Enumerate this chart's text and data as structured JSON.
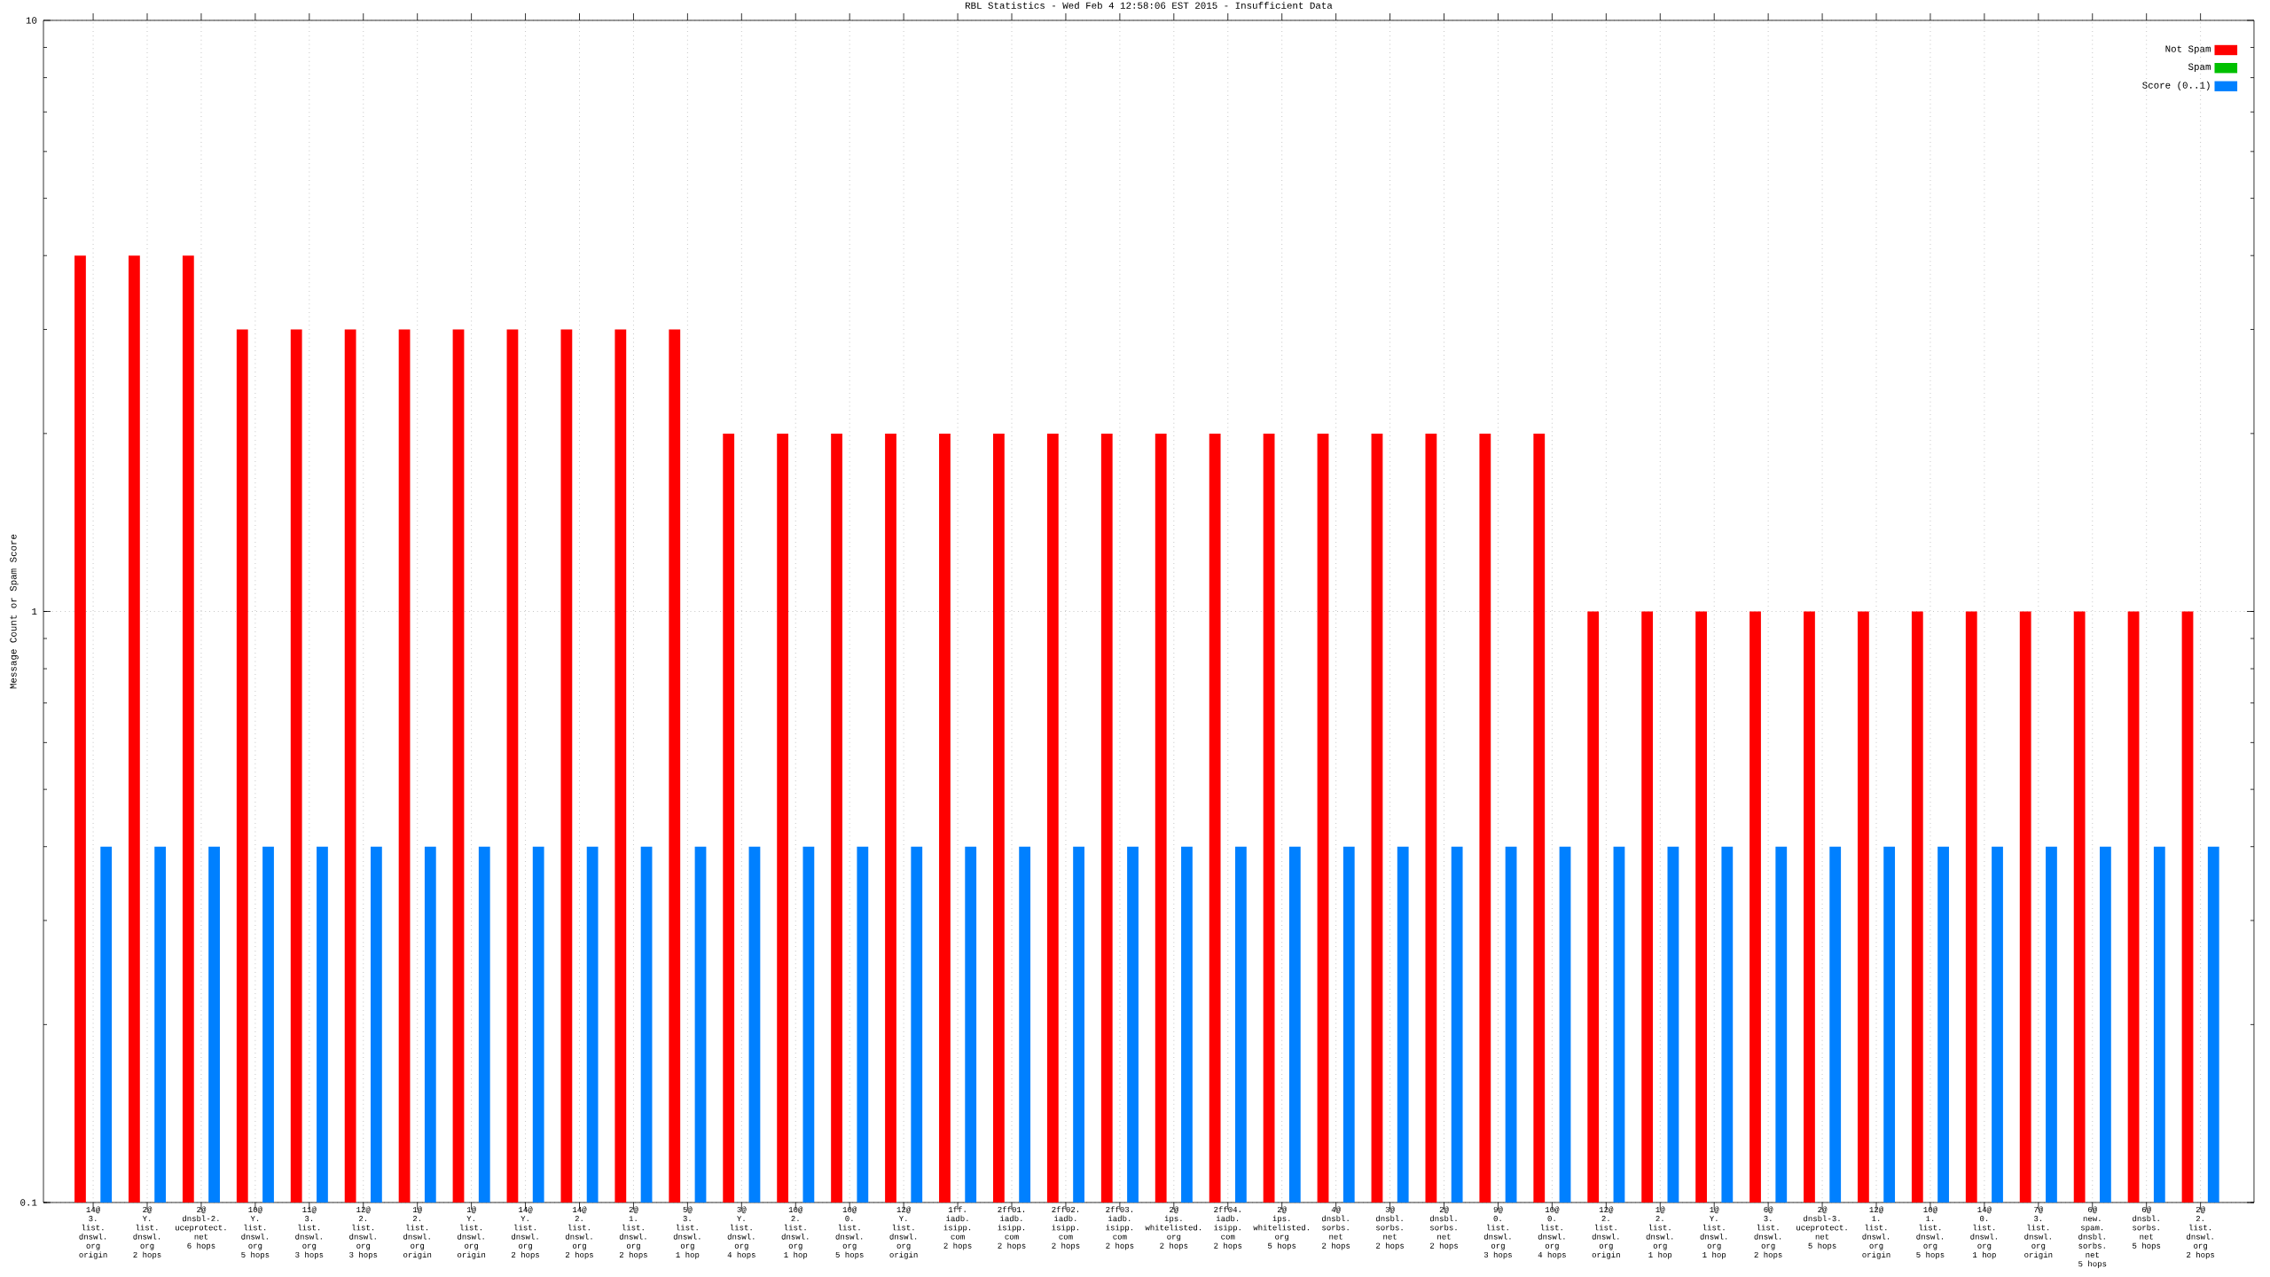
{
  "chart_data": {
    "type": "bar",
    "title": "RBL Statistics - Wed Feb  4 12:58:06 EST 2015 - Insufficient Data",
    "ylabel": "Message Count or Spam Score",
    "categories": [
      "14@\n3.\nlist.\ndnswl.\norg\norigin",
      "2@\nY.\nlist.\ndnswl.\norg\n2 hops",
      "2@\ndnsbl-2.\nuceprotect.\nnet\n6 hops",
      "10@\nY.\nlist.\ndnswl.\norg\n5 hops",
      "11@\n3.\nlist.\ndnswl.\norg\n3 hops",
      "12@\n2.\nlist.\ndnswl.\norg\n3 hops",
      "1@\n2.\nlist.\ndnswl.\norg\norigin",
      "1@\nY.\nlist.\ndnswl.\norg\norigin",
      "14@\nY.\nlist.\ndnswl.\norg\n2 hops",
      "14@\n2.\nlist.\ndnswl.\norg\n2 hops",
      "2@\n1.\nlist.\ndnswl.\norg\n2 hops",
      "5@\n3.\nlist.\ndnswl.\norg\n1 hop",
      "3@\nY.\nlist.\ndnswl.\norg\n4 hops",
      "10@\n2.\nlist.\ndnswl.\norg\n1 hop",
      "10@\n0.\nlist.\ndnswl.\norg\n5 hops",
      "12@\nY.\nlist.\ndnswl.\norg\norigin",
      "1ff.\niadb.\nisipp.\ncom\n2 hops",
      "2ff01.\niadb.\nisipp.\ncom\n2 hops",
      "2ff02.\niadb.\nisipp.\ncom\n2 hops",
      "2ff03.\niadb.\nisipp.\ncom\n2 hops",
      "2@\nips.\nwhitelisted.\norg\n2 hops",
      "2ff04.\niadb.\nisipp.\ncom\n2 hops",
      "2@\nips.\nwhitelisted.\norg\n5 hops",
      "4@\ndnsbl.\nsorbs.\nnet\n2 hops",
      "3@\ndnsbl.\nsorbs.\nnet\n2 hops",
      "2@\ndnsbl.\nsorbs.\nnet\n2 hops",
      "9@\n0.\nlist.\ndnswl.\norg\n3 hops",
      "10@\n0.\nlist.\ndnswl.\norg\n4 hops",
      "12@\n2.\nlist.\ndnswl.\norg\norigin",
      "1@\n2.\nlist.\ndnswl.\norg\n1 hop",
      "1@\nY.\nlist.\ndnswl.\norg\n1 hop",
      "6@\n3.\nlist.\ndnswl.\norg\n2 hops",
      "2@\ndnsbl-3.\nuceprotect.\nnet\n5 hops",
      "12@\n1.\nlist.\ndnswl.\norg\norigin",
      "10@\n1.\nlist.\ndnswl.\norg\n5 hops",
      "14@\n0.\nlist.\ndnswl.\norg\n1 hop",
      "7@\n3.\nlist.\ndnswl.\norg\norigin",
      "6@\nnew.\nspam.\ndnsbl.\nsorbs.\nnet\n5 hops",
      "6@\ndnsbl.\nsorbs.\nnet\n5 hops",
      "2@\n2.\nlist.\ndnswl.\norg\n2 hops"
    ],
    "series": [
      {
        "name": "Not Spam",
        "color": "#ff0000",
        "values": [
          4,
          4,
          4,
          3,
          3,
          3,
          3,
          3,
          3,
          3,
          3,
          3,
          2,
          2,
          2,
          2,
          2,
          2,
          2,
          2,
          2,
          2,
          2,
          2,
          2,
          2,
          2,
          2,
          1,
          1,
          1,
          1,
          1,
          1,
          1,
          1,
          1,
          1,
          1,
          1
        ]
      },
      {
        "name": "Spam",
        "color": "#00c000",
        "values": [
          null,
          null,
          null,
          null,
          null,
          null,
          null,
          null,
          null,
          null,
          null,
          null,
          null,
          null,
          null,
          null,
          null,
          null,
          null,
          null,
          null,
          null,
          null,
          null,
          null,
          null,
          null,
          null,
          null,
          null,
          null,
          null,
          null,
          null,
          null,
          null,
          null,
          null,
          null,
          null
        ]
      },
      {
        "name": "Score (0..1)",
        "color": "#0080ff",
        "values": [
          0.4,
          0.4,
          0.4,
          0.4,
          0.4,
          0.4,
          0.4,
          0.4,
          0.4,
          0.4,
          0.4,
          0.4,
          0.4,
          0.4,
          0.4,
          0.4,
          0.4,
          0.4,
          0.4,
          0.4,
          0.4,
          0.4,
          0.4,
          0.4,
          0.4,
          0.4,
          0.4,
          0.4,
          0.4,
          0.4,
          0.4,
          0.4,
          0.4,
          0.4,
          0.4,
          0.4,
          0.4,
          0.4,
          0.4,
          0.4
        ]
      }
    ],
    "log": "y",
    "ylim": [
      0.1,
      10
    ],
    "yticks": [
      0.1,
      1,
      10
    ],
    "grid": true,
    "legend": "top right"
  }
}
